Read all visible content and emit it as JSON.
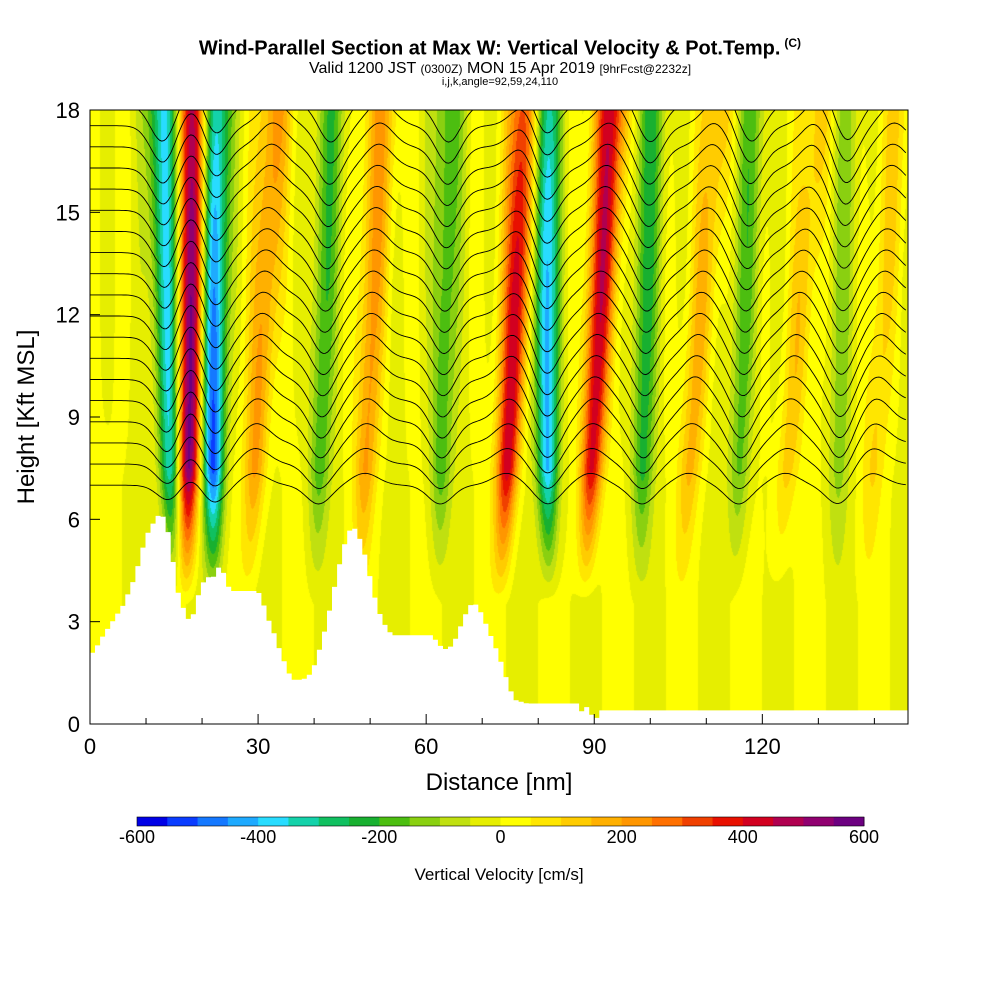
{
  "header": {
    "title": "Wind-Parallel Section at Max W: Vertical Velocity & Pot.Temp.",
    "title_tag": "(C)",
    "subtitle_a": "Valid 1200 JST",
    "subtitle_b": "(0300Z)",
    "subtitle_c": "MON 15 Apr 2019",
    "subtitle_d": "[9hrFcst@2232z]",
    "params": "i,j,k,angle=92,59,24,110"
  },
  "chart_data": {
    "type": "heatmap",
    "title": "Wind-Parallel Section at Max W: Vertical Velocity & Pot.Temp.",
    "xlabel": "Distance [nm]",
    "ylabel": "Height [Kft MSL]",
    "xlim": [
      0,
      146
    ],
    "ylim": [
      0,
      18
    ],
    "x_ticks": [
      "0",
      "30",
      "60",
      "90",
      "120"
    ],
    "x_tick_values": [
      0,
      30,
      60,
      90,
      120
    ],
    "y_ticks": [
      "0",
      "3",
      "6",
      "9",
      "12",
      "15",
      "18"
    ],
    "y_tick_values": [
      0,
      3,
      6,
      9,
      12,
      15,
      18
    ],
    "colorbar": {
      "label": "Vertical Velocity [cm/s]",
      "range": [
        -600,
        600
      ],
      "tick_labels": [
        "-600",
        "-400",
        "-200",
        "0",
        "200",
        "400",
        "600"
      ],
      "tick_values": [
        -600,
        -400,
        -200,
        0,
        200,
        400,
        600
      ],
      "colors": [
        "#0000e6",
        "#0a3cff",
        "#1478ff",
        "#1eaaff",
        "#28dcff",
        "#14d2aa",
        "#10c060",
        "#18b030",
        "#4cbe10",
        "#8ad010",
        "#c0e010",
        "#e6ee00",
        "#ffff00",
        "#ffe600",
        "#ffcc00",
        "#ffb000",
        "#ff9600",
        "#ff7000",
        "#f04000",
        "#e81000",
        "#d20020",
        "#b00050",
        "#900070",
        "#6c0080"
      ]
    },
    "updraft_bands": [
      {
        "x_base": 17,
        "x_top": 19,
        "w_max": 580
      },
      {
        "x_base": 28,
        "x_top": 33,
        "w_max": 220
      },
      {
        "x_base": 48,
        "x_top": 52,
        "w_max": 200
      },
      {
        "x_base": 73,
        "x_top": 78,
        "w_max": 440
      },
      {
        "x_base": 88,
        "x_top": 93,
        "w_max": 430
      },
      {
        "x_base": 105,
        "x_top": 112,
        "w_max": 160
      },
      {
        "x_base": 122,
        "x_top": 130,
        "w_max": 130
      },
      {
        "x_base": 138,
        "x_top": 144,
        "w_max": 100
      }
    ],
    "downdraft_bands": [
      {
        "x_base": 15,
        "x_top": 13,
        "w_min": -380
      },
      {
        "x_base": 22,
        "x_top": 22,
        "w_min": -520
      },
      {
        "x_base": 40,
        "x_top": 43,
        "w_min": -180
      },
      {
        "x_base": 62,
        "x_top": 64,
        "w_min": -190
      },
      {
        "x_base": 82,
        "x_top": 81,
        "w_min": -420
      },
      {
        "x_base": 98,
        "x_top": 100,
        "w_min": -210
      },
      {
        "x_base": 115,
        "x_top": 118,
        "w_min": -170
      },
      {
        "x_base": 133,
        "x_top": 135,
        "w_min": -110
      }
    ],
    "terrain_profile": {
      "x": [
        0,
        1,
        2,
        4,
        6,
        8,
        9,
        10,
        11,
        12,
        13,
        14,
        15,
        16,
        17,
        18,
        19,
        20,
        21,
        22,
        23,
        24,
        25,
        26,
        27,
        28,
        29,
        30,
        31,
        32,
        33,
        34,
        35,
        36,
        37,
        38,
        39,
        40,
        41,
        42,
        43,
        44,
        45,
        46,
        47,
        48,
        49,
        50,
        51,
        52,
        53,
        54,
        55,
        56,
        57,
        58,
        59,
        60,
        61,
        62,
        63,
        64,
        65,
        66,
        67,
        68,
        69,
        70,
        71,
        72,
        73,
        74,
        75,
        76,
        78,
        80,
        84,
        86,
        87,
        88,
        89,
        90,
        91,
        92,
        94,
        96,
        100,
        110,
        120,
        130,
        140,
        146
      ],
      "height": [
        2.0,
        2.2,
        2.5,
        3.0,
        3.5,
        4.3,
        4.9,
        5.5,
        5.8,
        6.1,
        6.1,
        5.6,
        4.6,
        3.6,
        3.3,
        2.9,
        3.6,
        4.1,
        4.3,
        4.3,
        4.6,
        4.4,
        3.9,
        3.9,
        3.9,
        3.9,
        3.9,
        3.9,
        3.5,
        3.0,
        2.6,
        2.1,
        1.7,
        1.3,
        1.3,
        1.3,
        1.4,
        1.7,
        2.2,
        2.8,
        3.5,
        4.3,
        5.0,
        5.6,
        5.8,
        5.5,
        5.0,
        4.3,
        3.6,
        3.1,
        2.8,
        2.6,
        2.6,
        2.6,
        2.6,
        2.6,
        2.6,
        2.6,
        2.6,
        2.4,
        2.2,
        2.2,
        2.4,
        2.8,
        3.2,
        3.5,
        3.5,
        3.2,
        2.8,
        2.4,
        2.0,
        1.5,
        1.0,
        0.7,
        0.6,
        0.6,
        0.6,
        0.6,
        0.6,
        0.3,
        0.6,
        0.0,
        0.4,
        0.4,
        0.4,
        0.4,
        0.4,
        0.4,
        0.4,
        0.4,
        0.4,
        0.4
      ]
    }
  }
}
